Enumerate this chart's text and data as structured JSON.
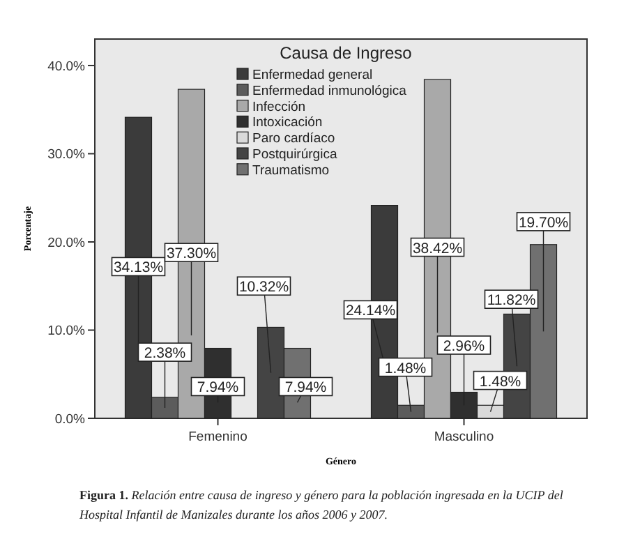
{
  "chart_data": {
    "type": "bar",
    "xlabel": "Género",
    "ylabel": "Porcentaje",
    "legend_title": "Causa de Ingreso",
    "legend": "top",
    "categories": [
      "Femenino",
      "Masculino"
    ],
    "series": [
      {
        "name": "Enfermedad general",
        "color": "#3b3b3b",
        "values": [
          34.13,
          24.14
        ],
        "value_labels": [
          "34.13%",
          "24.14%"
        ]
      },
      {
        "name": "Enfermedad inmunológica",
        "color": "#5c5c5c",
        "values": [
          2.38,
          1.48
        ],
        "value_labels": [
          "2.38%",
          "1.48%"
        ]
      },
      {
        "name": "Infección",
        "color": "#a9a9a9",
        "values": [
          37.3,
          38.42
        ],
        "value_labels": [
          "37.30%",
          "38.42%"
        ]
      },
      {
        "name": "Intoxicación",
        "color": "#2f2f2f",
        "values": [
          7.94,
          2.96
        ],
        "value_labels": [
          "7.94%",
          "2.96%"
        ]
      },
      {
        "name": "Paro cardíaco",
        "color": "#d9d9d9",
        "values": [
          null,
          1.48
        ],
        "value_labels": [
          null,
          "1.48%"
        ]
      },
      {
        "name": "Postquirúrgica",
        "color": "#444444",
        "values": [
          10.32,
          11.82
        ],
        "value_labels": [
          "10.32%",
          "11.82%"
        ]
      },
      {
        "name": "Traumatismo",
        "color": "#707070",
        "values": [
          7.94,
          19.7
        ],
        "value_labels": [
          "7.94%",
          "19.70%"
        ]
      }
    ],
    "ylim": [
      0,
      43
    ],
    "yticks": [
      {
        "value": 0,
        "label": "0.0%"
      },
      {
        "value": 10,
        "label": "10.0%"
      },
      {
        "value": 20,
        "label": "20.0%"
      },
      {
        "value": 30,
        "label": "30.0%"
      },
      {
        "value": 40,
        "label": "40.0%"
      }
    ],
    "annotations": [
      "Figura 1.",
      "Relación entre causa de ingreso y género para la población ingresada en la UCIP del Hospital Infantil de Manizales durante los años 2006 y 2007."
    ]
  }
}
